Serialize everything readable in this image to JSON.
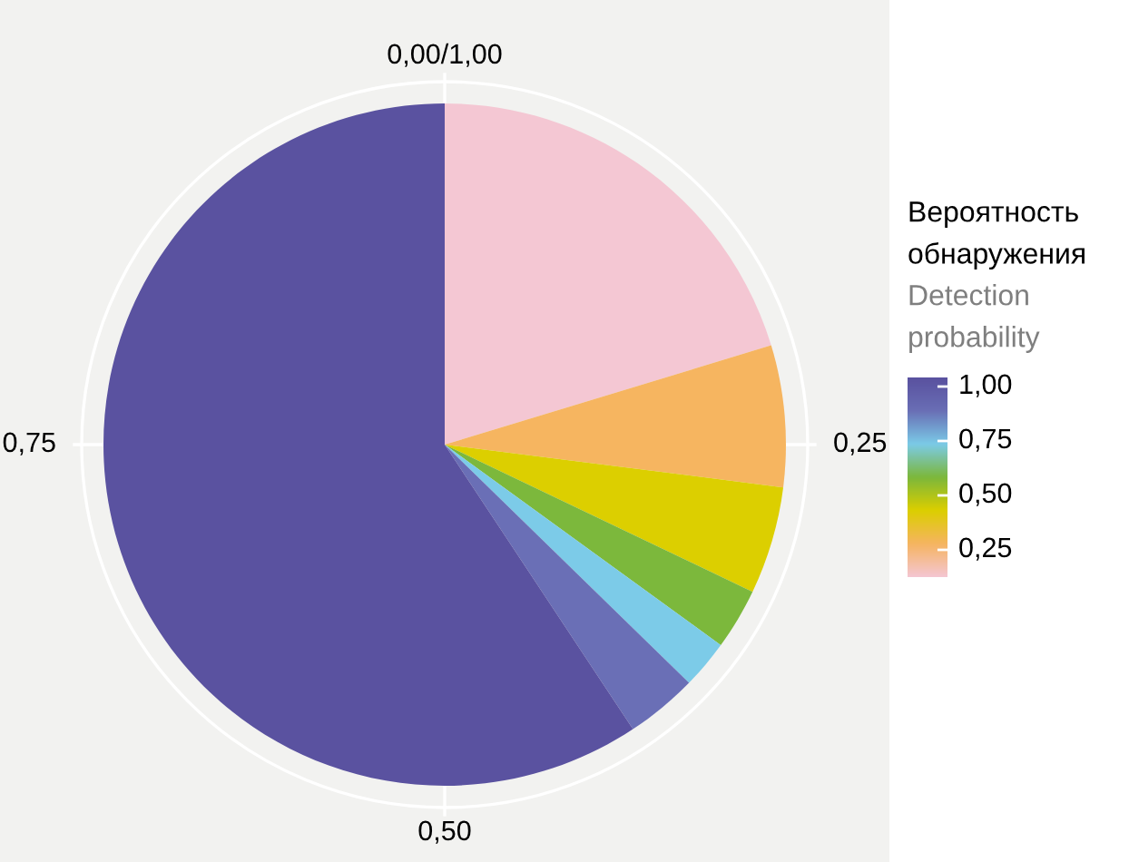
{
  "chart_data": {
    "type": "pie",
    "categories": [
      null,
      null,
      null,
      null,
      null,
      null,
      null
    ],
    "values": [
      20.3,
      6.7,
      5.1,
      2.9,
      2.3,
      3.4,
      59.3
    ],
    "colors": [
      "#f4c7d3",
      "#f6b560",
      "#dccf00",
      "#7cb83c",
      "#7ccbe8",
      "#6a6fb6",
      "#5a52a0"
    ],
    "annotations": [
      "0,00/1,00",
      "0,25",
      "0,50",
      "0,75",
      "1,00",
      "0,75",
      "0,50",
      "0,25"
    ],
    "grid": true,
    "clabel": "Вероятность\nобнаружения\nDetection\nprobability"
  }
}
